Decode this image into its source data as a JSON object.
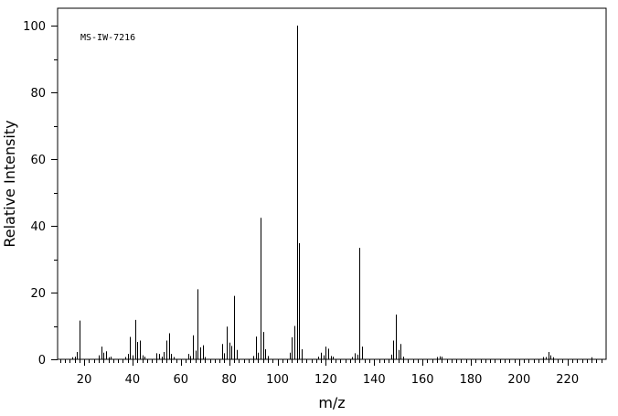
{
  "chart_data": {
    "type": "bar",
    "annotation": "MS-IW-7216",
    "xlabel": "m/z",
    "ylabel": "Relative Intensity",
    "xlim": [
      9,
      236
    ],
    "ylim": [
      0,
      100
    ],
    "x_ticks": [
      20,
      40,
      60,
      80,
      100,
      120,
      140,
      160,
      180,
      200,
      220
    ],
    "y_ticks": [
      0,
      20,
      40,
      60,
      80,
      100
    ],
    "grid": false,
    "legend": "none",
    "colors": {
      "line": "#000000",
      "background": "#ffffff"
    },
    "peaks": [
      [
        15,
        0.6
      ],
      [
        16,
        0.8
      ],
      [
        17,
        2.2
      ],
      [
        18,
        11.6
      ],
      [
        26,
        1.2
      ],
      [
        27,
        3.8
      ],
      [
        28,
        2.0
      ],
      [
        29,
        2.4
      ],
      [
        30,
        0.6
      ],
      [
        31,
        0.8
      ],
      [
        37,
        0.7
      ],
      [
        38,
        1.6
      ],
      [
        39,
        6.7
      ],
      [
        40,
        1.2
      ],
      [
        41,
        11.8
      ],
      [
        42,
        5.2
      ],
      [
        43,
        5.6
      ],
      [
        44,
        1.2
      ],
      [
        45,
        0.8
      ],
      [
        50,
        1.8
      ],
      [
        51,
        1.6
      ],
      [
        52,
        0.8
      ],
      [
        53,
        2.2
      ],
      [
        54,
        5.6
      ],
      [
        55,
        7.8
      ],
      [
        56,
        1.6
      ],
      [
        57,
        0.7
      ],
      [
        63,
        1.6
      ],
      [
        64,
        1.0
      ],
      [
        65,
        7.2
      ],
      [
        66,
        2.6
      ],
      [
        67,
        21.0
      ],
      [
        68,
        3.6
      ],
      [
        69,
        4.2
      ],
      [
        70,
        0.7
      ],
      [
        77,
        4.6
      ],
      [
        78,
        1.8
      ],
      [
        79,
        9.8
      ],
      [
        80,
        5.0
      ],
      [
        81,
        4.0
      ],
      [
        82,
        19.0
      ],
      [
        83,
        2.8
      ],
      [
        90,
        1.0
      ],
      [
        91,
        6.8
      ],
      [
        92,
        2.0
      ],
      [
        93,
        42.4
      ],
      [
        94,
        8.2
      ],
      [
        95,
        3.0
      ],
      [
        96,
        1.0
      ],
      [
        105,
        2.0
      ],
      [
        106,
        6.6
      ],
      [
        107,
        10.0
      ],
      [
        108,
        100
      ],
      [
        109,
        34.8
      ],
      [
        110,
        3.0
      ],
      [
        117,
        0.8
      ],
      [
        118,
        2.0
      ],
      [
        119,
        1.2
      ],
      [
        120,
        3.8
      ],
      [
        121,
        3.2
      ],
      [
        122,
        1.0
      ],
      [
        123,
        0.8
      ],
      [
        131,
        0.7
      ],
      [
        132,
        1.8
      ],
      [
        133,
        1.4
      ],
      [
        134,
        33.4
      ],
      [
        135,
        3.8
      ],
      [
        147,
        1.4
      ],
      [
        148,
        5.6
      ],
      [
        149,
        13.4
      ],
      [
        150,
        2.8
      ],
      [
        151,
        4.6
      ],
      [
        152,
        0.8
      ],
      [
        166,
        0.7
      ],
      [
        167,
        0.9
      ],
      [
        168,
        0.8
      ],
      [
        210,
        0.7
      ],
      [
        211,
        0.7
      ],
      [
        212,
        2.2
      ],
      [
        213,
        1.2
      ],
      [
        214,
        0.6
      ],
      [
        230,
        0.6
      ]
    ]
  }
}
